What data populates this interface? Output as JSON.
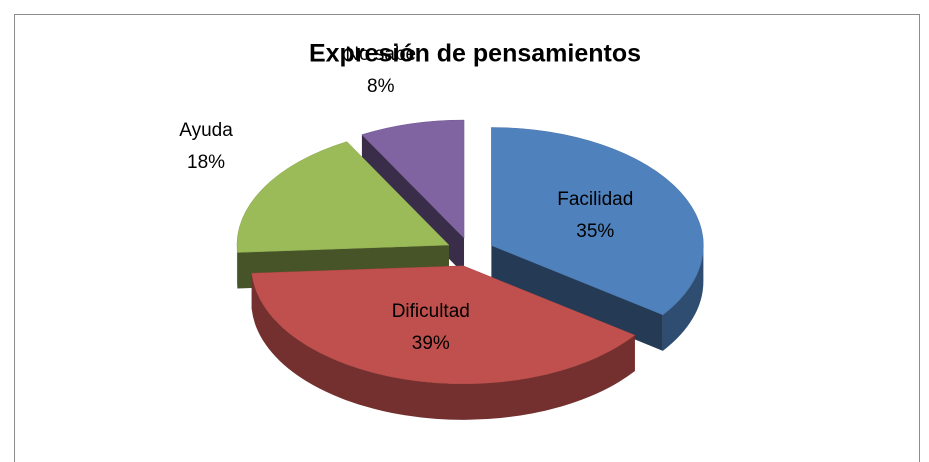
{
  "chart_data": {
    "type": "pie",
    "title": "Expresión de pensamientos",
    "categories": [
      "Facilidad",
      "Dificultad",
      "Ayuda",
      "No sabe"
    ],
    "values": [
      35,
      39,
      18,
      8
    ],
    "value_labels": [
      "35%",
      "39%",
      "18%",
      "8%"
    ],
    "colors": [
      "#4f81bd",
      "#c0504d",
      "#9bbb59",
      "#8064a2"
    ],
    "three_d": true,
    "exploded": true,
    "legend": false
  }
}
